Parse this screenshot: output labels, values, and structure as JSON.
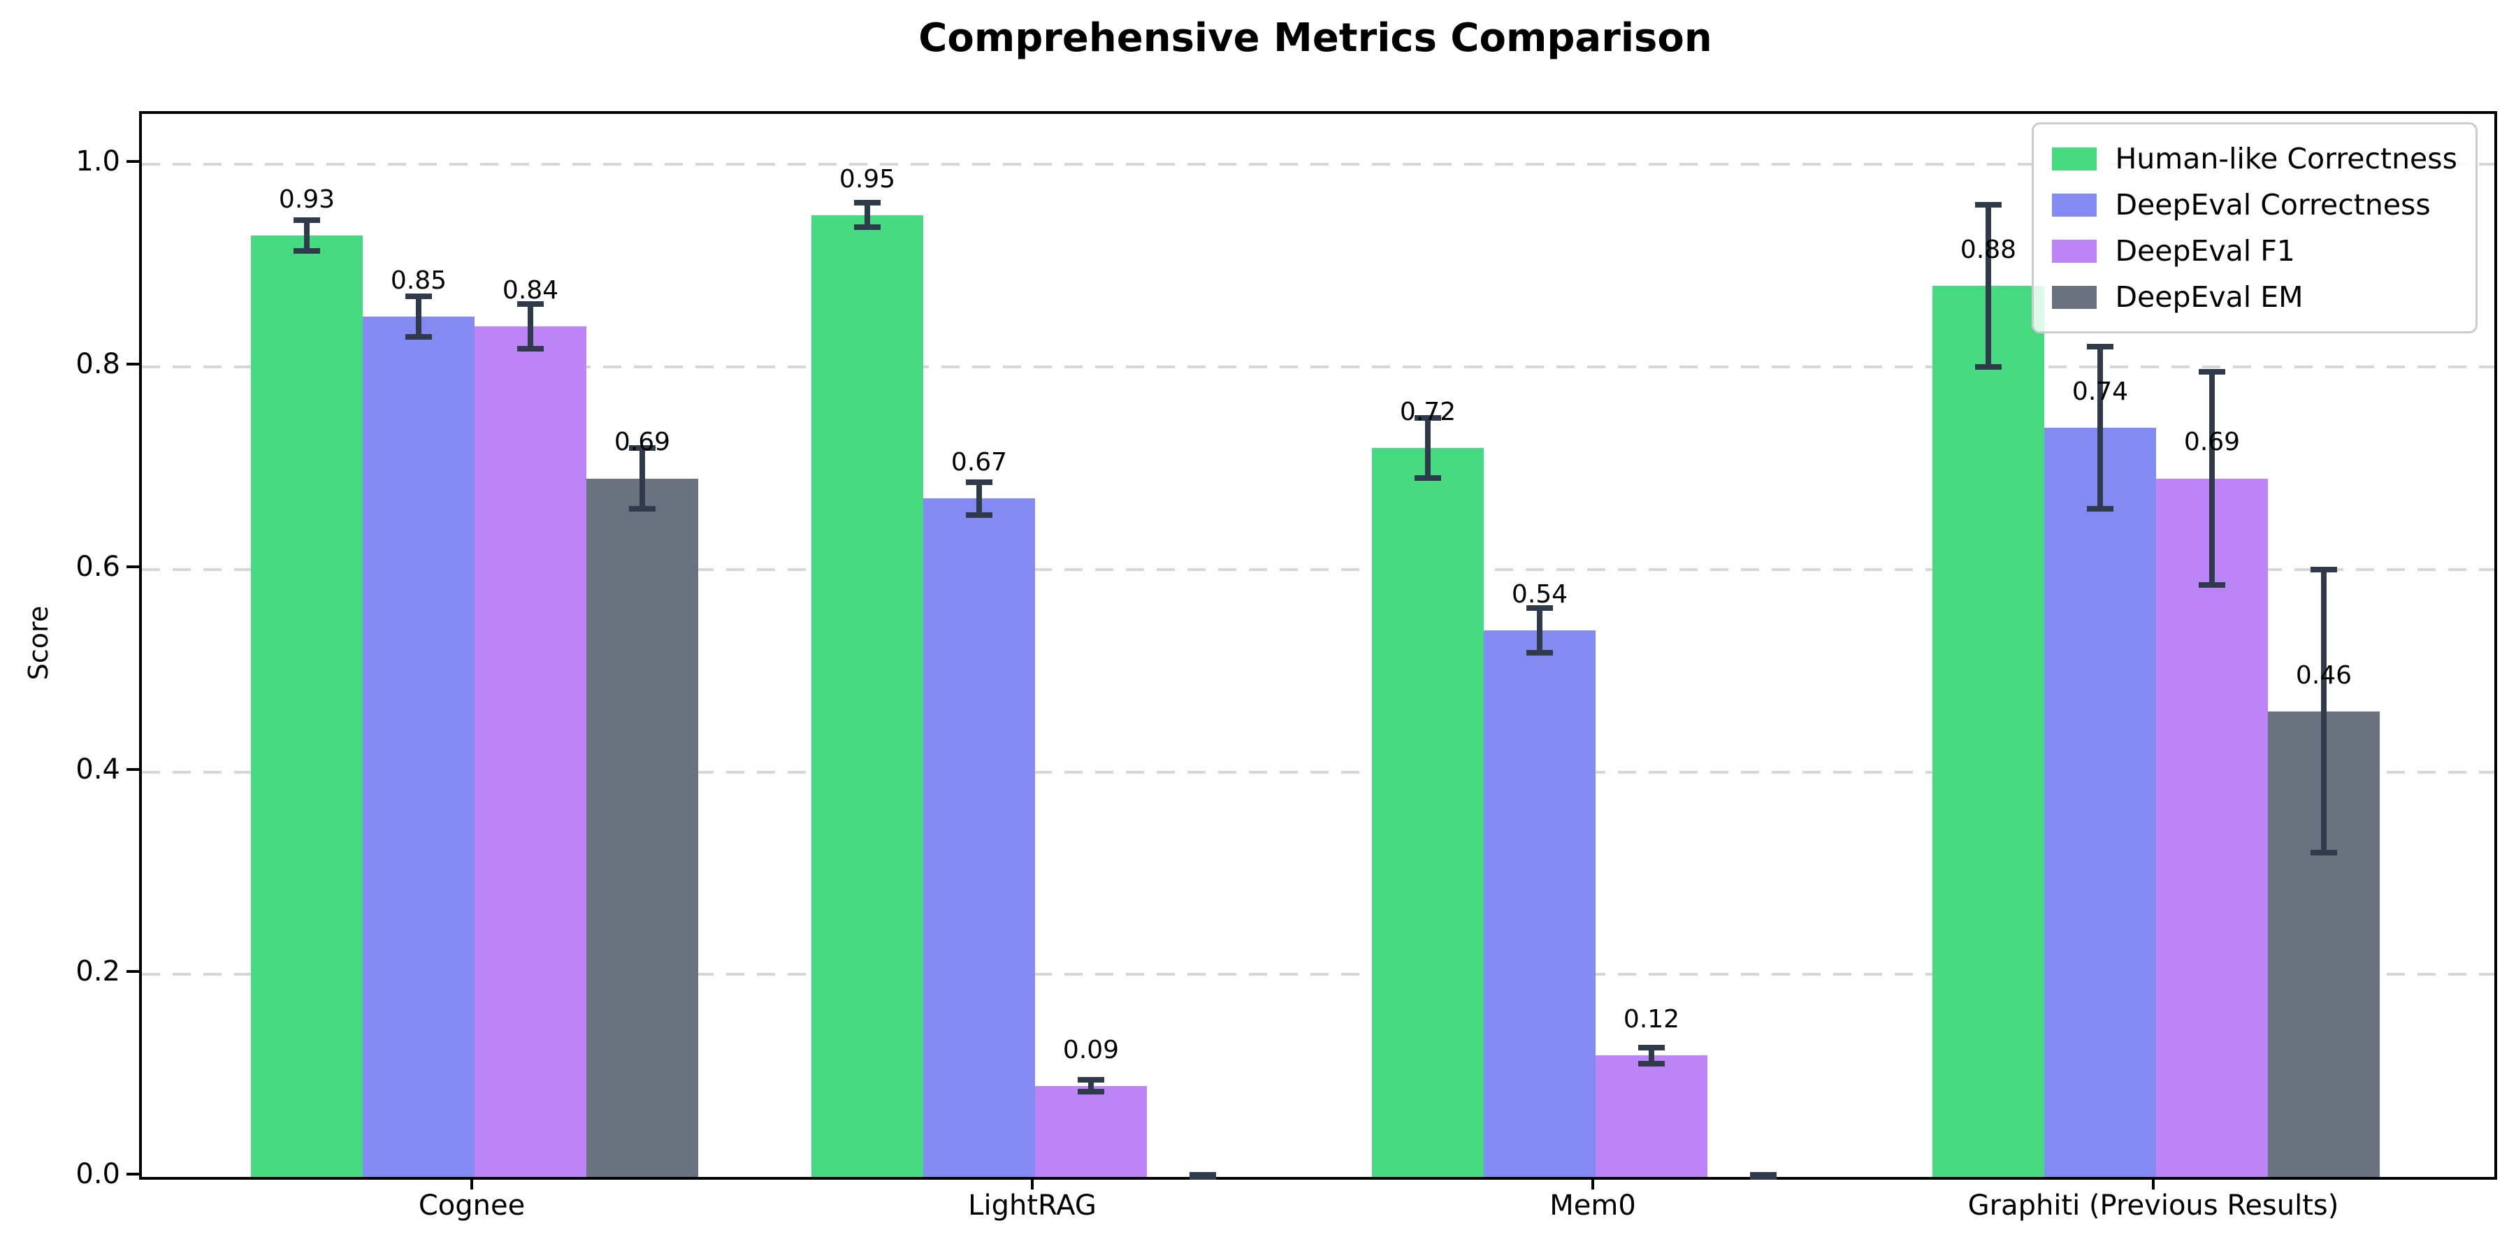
{
  "chart_data": {
    "type": "bar",
    "title": "Comprehensive Metrics Comparison",
    "xlabel": "",
    "ylabel": "Score",
    "categories": [
      "Cognee",
      "LightRAG",
      "Mem0",
      "Graphiti (Previous Results)"
    ],
    "series": [
      {
        "name": "Human-like Correctness",
        "color": "#47da81",
        "values": [
          0.93,
          0.95,
          0.72,
          0.88
        ],
        "errors": [
          0.015,
          0.012,
          0.03,
          0.08
        ],
        "labels": [
          "0.93",
          "0.95",
          "0.72",
          "0.88"
        ]
      },
      {
        "name": "DeepEval Correctness",
        "color": "#838bf2",
        "values": [
          0.85,
          0.67,
          0.54,
          0.74
        ],
        "errors": [
          0.02,
          0.016,
          0.022,
          0.08
        ],
        "labels": [
          "0.85",
          "0.67",
          "0.54",
          "0.74"
        ]
      },
      {
        "name": "DeepEval F1",
        "color": "#bd84f7",
        "values": [
          0.84,
          0.09,
          0.12,
          0.69
        ],
        "errors": [
          0.022,
          0.006,
          0.008,
          0.105
        ],
        "labels": [
          "0.84",
          "0.09",
          "0.12",
          "0.69"
        ]
      },
      {
        "name": "DeepEval EM",
        "color": "#6a7280",
        "values": [
          0.69,
          0.0,
          0.0,
          0.46
        ],
        "errors": [
          0.03,
          0.002,
          0.002,
          0.14
        ],
        "labels": [
          "0.69",
          "",
          "",
          "0.46"
        ]
      }
    ],
    "yticks": [
      "0.0",
      "0.2",
      "0.4",
      "0.6",
      "0.8",
      "1.0"
    ],
    "ylim": [
      0,
      1.05
    ],
    "grid": "horizontal dashed",
    "error_bar_color": "#2f3b4a",
    "legend_position": "upper right"
  }
}
